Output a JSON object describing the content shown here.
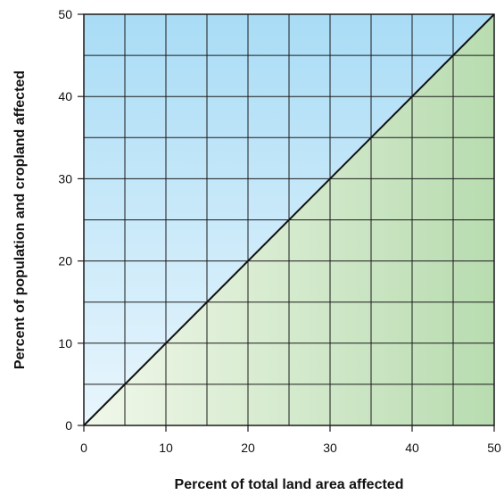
{
  "chart_data": {
    "type": "area",
    "xlabel": "Percent of total land area affected",
    "ylabel": "Percent of population and cropland affected",
    "xlim": [
      0,
      50
    ],
    "ylim": [
      0,
      50
    ],
    "x_ticks": [
      0,
      10,
      20,
      30,
      40,
      50
    ],
    "y_ticks": [
      0,
      10,
      20,
      30,
      40,
      50
    ],
    "x_tick_labels": [
      "0",
      "10",
      "20",
      "30",
      "40",
      "50"
    ],
    "y_tick_labels": [
      "0",
      "10",
      "20",
      "30",
      "40",
      "50"
    ],
    "grid": true,
    "grid_step": 5,
    "series": [
      {
        "type": "line",
        "x": [
          0,
          50
        ],
        "y": [
          0,
          50
        ]
      }
    ],
    "regions": [
      {
        "where": "above the line",
        "color": "#a9dcf6"
      },
      {
        "where": "below the line",
        "color": "#b8dcb0"
      }
    ]
  },
  "colors": {
    "upper_region_top": "#a9dcf6",
    "upper_region_bottom": "#e9f6fd",
    "lower_region_left": "#f1f8ea",
    "lower_region_right": "#b8dcb0",
    "grid": "#1a1a1a",
    "diagonal": "#111111"
  }
}
